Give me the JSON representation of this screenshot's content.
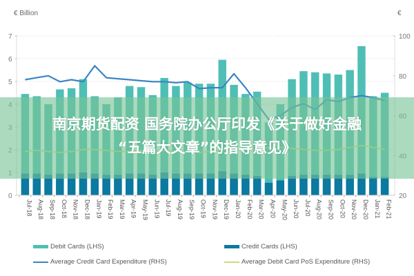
{
  "chart_data": {
    "type": "bar",
    "title": "",
    "left_axis_label": "€ Billion",
    "right_axis_label": "€",
    "xlabel": "",
    "ylabel_left": "€ Billion",
    "ylabel_right": "€",
    "ylim_left": [
      0,
      7
    ],
    "ylim_right": [
      20,
      100
    ],
    "left_ticks": [
      "0",
      "1",
      "2",
      "3",
      "4",
      "5",
      "6",
      "7"
    ],
    "right_ticks": [
      "20",
      "40",
      "60",
      "80",
      "100"
    ],
    "grid": true,
    "legend_position": "bottom",
    "categories": [
      "Jul-18",
      "Aug-18",
      "Sep-18",
      "Oct-18",
      "Nov-18",
      "Dec-18",
      "Jan-19",
      "Feb-19",
      "Mar-19",
      "Apr-19",
      "May-19",
      "Jun-19",
      "Jul-19",
      "Aug-19",
      "Sep-19",
      "Oct-19",
      "Nov-19",
      "Dec-19",
      "Jan-20",
      "Feb-20",
      "Mar-20",
      "Apr-20",
      "May-20",
      "Jun-20",
      "Jul-20",
      "Aug-20",
      "Sep-20",
      "Oct-20",
      "Nov-20",
      "Dec-20",
      "Jan-21",
      "Feb-21"
    ],
    "series": [
      {
        "name": "Debit Cards (LHS)",
        "type": "bar",
        "axis": "left",
        "color": "#4fbfb5",
        "values": [
          4.45,
          4.35,
          4.0,
          4.65,
          4.7,
          5.1,
          4.35,
          4.0,
          4.3,
          4.8,
          4.75,
          4.4,
          5.15,
          4.8,
          4.95,
          4.9,
          4.9,
          5.95,
          4.85,
          4.45,
          4.55,
          3.2,
          4.0,
          5.1,
          5.45,
          5.4,
          5.35,
          5.3,
          5.5,
          6.55,
          4.35,
          4.5
        ]
      },
      {
        "name": "Credit Cards (LHS)",
        "type": "bar",
        "axis": "left",
        "color": "#0b79a0",
        "values": [
          0.95,
          0.95,
          0.9,
          0.95,
          0.95,
          1.0,
          0.95,
          0.9,
          0.9,
          0.95,
          0.95,
          0.9,
          1.0,
          0.95,
          0.95,
          0.95,
          0.95,
          1.05,
          0.95,
          0.9,
          0.85,
          0.55,
          0.65,
          0.85,
          0.9,
          0.9,
          0.9,
          0.9,
          0.9,
          0.95,
          0.8,
          0.8
        ]
      },
      {
        "name": "Average Credit Card Expenditure (RHS)",
        "type": "line",
        "axis": "right",
        "color": "#3b84c4",
        "values": [
          78,
          79,
          80,
          77,
          78,
          77,
          85,
          79,
          78.5,
          78,
          77.5,
          77,
          77,
          76.5,
          77,
          73.5,
          74,
          74,
          81,
          74,
          66,
          58,
          60,
          64,
          66,
          63,
          68,
          67,
          69,
          70,
          69,
          67.5
        ]
      },
      {
        "name": "Average Debit Card PoS Expenditure (RHS)",
        "type": "line",
        "axis": "right",
        "color": "#c9dc7a",
        "values": [
          42,
          42.5,
          42,
          41.5,
          42,
          43,
          43,
          42.5,
          42,
          42,
          42.5,
          42,
          42.5,
          42,
          42,
          41.5,
          42,
          43,
          43,
          43,
          43,
          44,
          44,
          43.5,
          43,
          42.5,
          42.5,
          43,
          44,
          45,
          44,
          43
        ]
      }
    ]
  },
  "overlay": {
    "line1": "南京期货配资 国务院办公厅印发《关于做好金融",
    "line2": "“五篇大文章”的指导意见》"
  },
  "legend": {
    "debit_cards": "Debit Cards (LHS)",
    "credit_cards": "Credit Cards (LHS)",
    "avg_credit": "Average Credit Card Expenditure (RHS)",
    "avg_debit_pos": "Average Debit Card PoS Expenditure (RHS)"
  },
  "colors": {
    "debit": "#4fbfb5",
    "credit": "#0b79a0",
    "avg_credit_line": "#3b84c4",
    "avg_debit_line": "#c9dc7a",
    "band": "#78c496"
  }
}
